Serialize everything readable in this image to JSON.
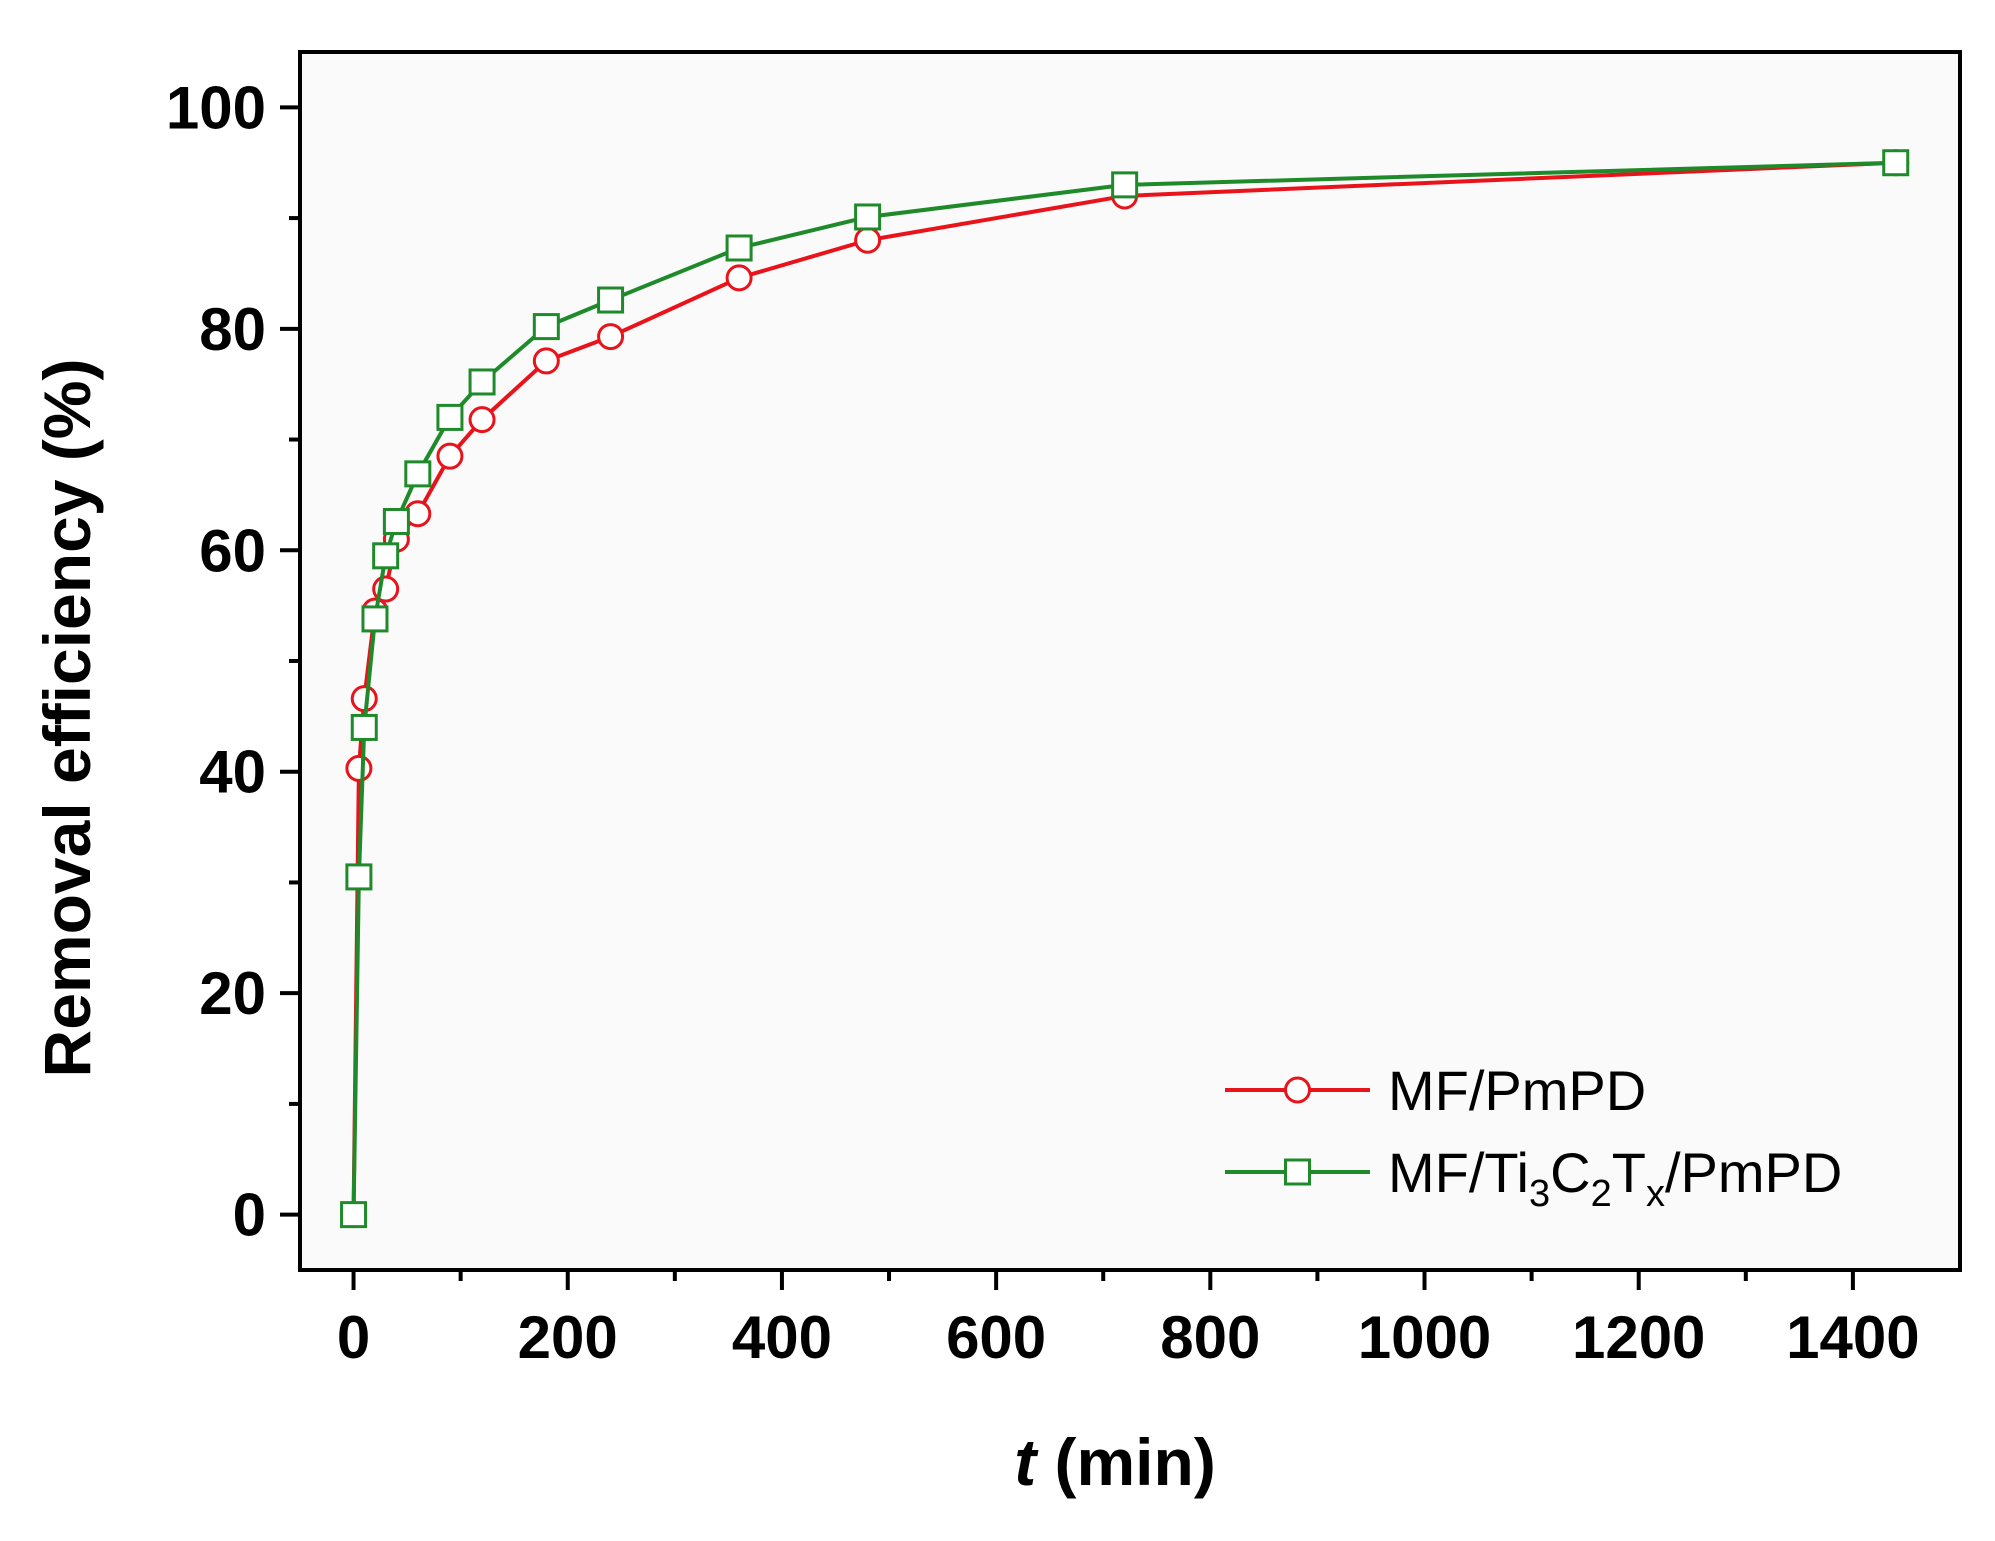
{
  "chart_data": {
    "type": "line",
    "title": "",
    "xlabel_italic": "t",
    "xlabel_rest": " (min)",
    "ylabel": "Removal efficiency (%)",
    "xlim": [
      -50,
      1500
    ],
    "ylim": [
      -5,
      105
    ],
    "xticks": [
      0,
      200,
      400,
      600,
      800,
      1000,
      1200,
      1400
    ],
    "xtick_labels": [
      "0",
      "200",
      "400",
      "600",
      "800",
      "1000",
      "1200",
      "1400"
    ],
    "yticks": [
      0,
      20,
      40,
      60,
      80,
      100
    ],
    "ytick_labels": [
      "0",
      "20",
      "40",
      "60",
      "80",
      "100"
    ],
    "grid": false,
    "legend_position": "bottom-right",
    "series": [
      {
        "name": "MF/PmPD",
        "marker": "circle",
        "color": "#e8131b",
        "x": [
          0,
          5,
          10,
          20,
          30,
          40,
          60,
          90,
          120,
          180,
          240,
          360,
          480,
          720,
          1440
        ],
        "y": [
          0,
          40.3,
          46.6,
          54.5,
          56.5,
          61,
          63.3,
          68.5,
          71.8,
          77.1,
          79.3,
          84.6,
          88,
          92,
          95
        ]
      },
      {
        "name_parts": [
          "MF/Ti",
          "3",
          "C",
          "2",
          "T",
          "x",
          "/PmPD"
        ],
        "marker": "square",
        "color": "#1e8a2a",
        "x": [
          0,
          5,
          10,
          20,
          30,
          40,
          60,
          90,
          120,
          180,
          240,
          360,
          480,
          720,
          1440
        ],
        "y": [
          0,
          30.5,
          44,
          53.8,
          59.5,
          62.6,
          66.9,
          72,
          75.2,
          80.2,
          82.6,
          87.3,
          90.1,
          93,
          95
        ]
      }
    ]
  }
}
